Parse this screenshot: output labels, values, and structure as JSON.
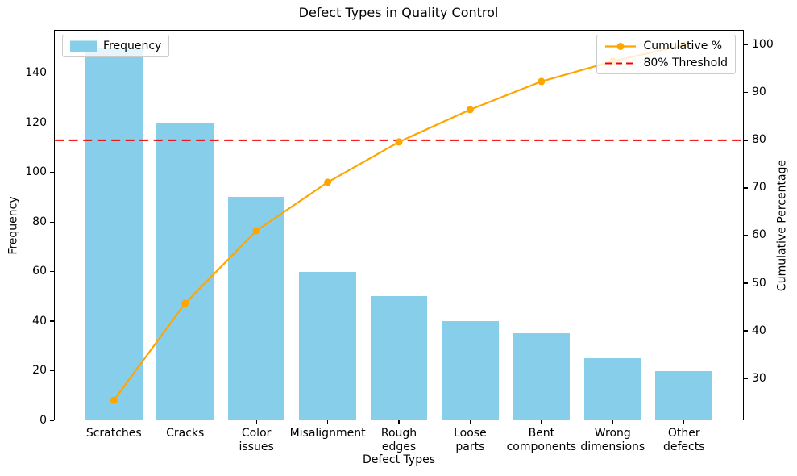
{
  "title": "Defect Types in Quality Control",
  "legend_left": {
    "frequency_label": "Frequency"
  },
  "legend_right": {
    "items": [
      {
        "label": "Cumulative %"
      },
      {
        "label": "80% Threshold"
      }
    ]
  },
  "colors": {
    "bar": "#87CEEB",
    "cumulative_line": "#FFA500",
    "threshold_line": "#F40000",
    "text": "#000000",
    "legend_border": "#CCCCCC"
  },
  "chart_data": {
    "type": "pareto (bar + line)",
    "title": "Defect Types in Quality Control",
    "categories": [
      "Scratches",
      "Cracks",
      "Color\nissues",
      "Misalignment",
      "Rough\nedges",
      "Loose\nparts",
      "Bent\ncomponents",
      "Wrong\ndimensions",
      "Other\ndefects"
    ],
    "series": [
      {
        "name": "Frequency",
        "type": "bar",
        "axis": "left",
        "values": [
          150,
          120,
          90,
          60,
          50,
          40,
          35,
          25,
          20
        ]
      },
      {
        "name": "Cumulative %",
        "type": "line",
        "axis": "right",
        "values": [
          25.42,
          45.76,
          61.02,
          71.19,
          79.66,
          86.44,
          92.37,
          96.61,
          100.0
        ]
      }
    ],
    "threshold": {
      "label": "80% Threshold",
      "axis": "right",
      "value": 80,
      "style": "dashed"
    },
    "axes": {
      "x": {
        "label": "Defect Types",
        "lim": [
          -0.84,
          8.84
        ]
      },
      "left": {
        "label": "Frequency",
        "ticks": [
          0,
          20,
          40,
          60,
          80,
          100,
          120,
          140
        ],
        "lim": [
          0,
          157.5
        ]
      },
      "right": {
        "label": "Cumulative Percentage",
        "ticks": [
          30,
          40,
          50,
          60,
          70,
          80,
          90,
          100
        ],
        "lim": [
          21.2,
          103.2
        ]
      }
    },
    "grid": false,
    "legend_positions": {
      "Frequency": "upper left",
      "Cumulative %": "upper right"
    }
  }
}
